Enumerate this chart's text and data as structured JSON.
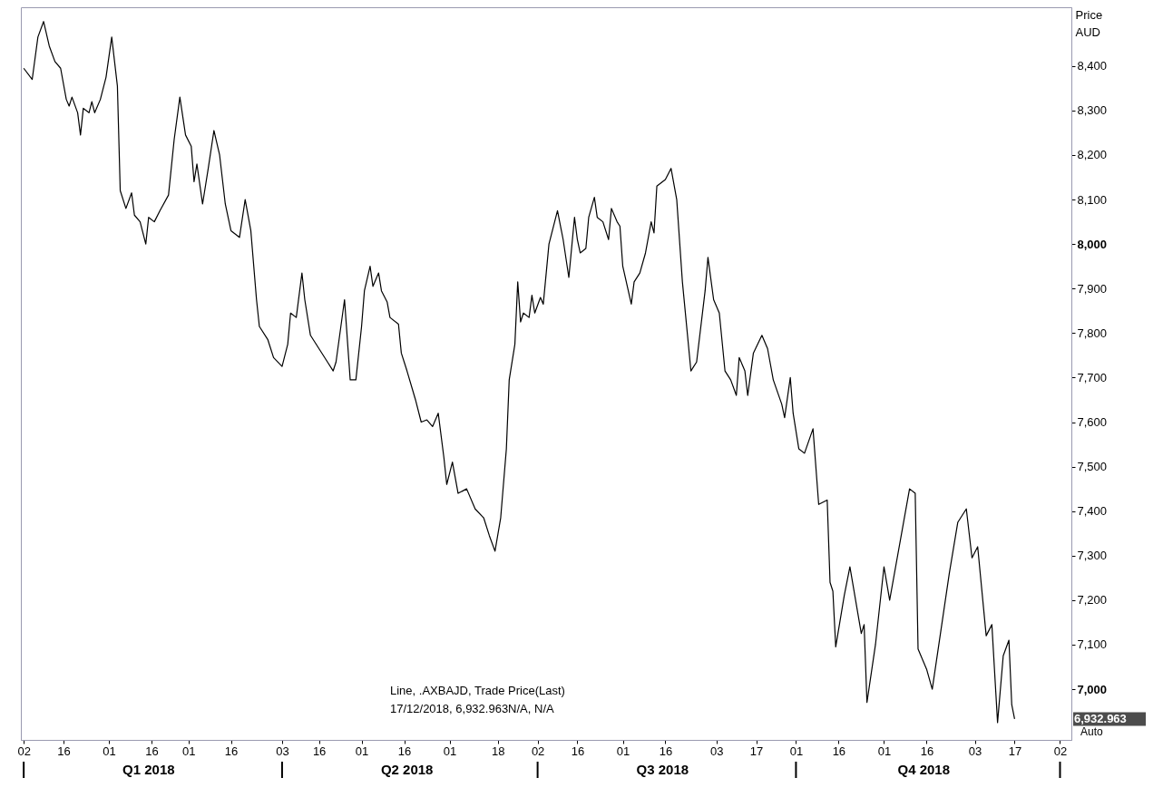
{
  "chart_data": {
    "type": "line",
    "ylabel": "Price AUD",
    "x": [
      "2018-01-02",
      "2018-01-05",
      "2018-01-07",
      "2018-01-09",
      "2018-01-11",
      "2018-01-13",
      "2018-01-15",
      "2018-01-17",
      "2018-01-18",
      "2018-01-19",
      "2018-01-21",
      "2018-01-22",
      "2018-01-23",
      "2018-01-25",
      "2018-01-26",
      "2018-01-27",
      "2018-01-29",
      "2018-01-31",
      "2018-02-02",
      "2018-02-04",
      "2018-02-05",
      "2018-02-07",
      "2018-02-09",
      "2018-02-10",
      "2018-02-12",
      "2018-02-14",
      "2018-02-15",
      "2018-02-17",
      "2018-02-19",
      "2018-02-22",
      "2018-02-24",
      "2018-02-26",
      "2018-02-28",
      "2018-03-02",
      "2018-03-03",
      "2018-03-04",
      "2018-03-06",
      "2018-03-08",
      "2018-03-10",
      "2018-03-12",
      "2018-03-14",
      "2018-03-16",
      "2018-03-19",
      "2018-03-21",
      "2018-03-23",
      "2018-03-25",
      "2018-03-26",
      "2018-03-29",
      "2018-03-31",
      "2018-04-03",
      "2018-04-05",
      "2018-04-06",
      "2018-04-08",
      "2018-04-10",
      "2018-04-11",
      "2018-04-13",
      "2018-04-16",
      "2018-04-19",
      "2018-04-21",
      "2018-04-22",
      "2018-04-25",
      "2018-04-27",
      "2018-04-29",
      "2018-05-01",
      "2018-05-02",
      "2018-05-04",
      "2018-05-05",
      "2018-05-07",
      "2018-05-08",
      "2018-05-10",
      "2018-05-11",
      "2018-05-14",
      "2018-05-15",
      "2018-05-17",
      "2018-05-20",
      "2018-05-22",
      "2018-05-24",
      "2018-05-26",
      "2018-05-28",
      "2018-05-30",
      "2018-05-31",
      "2018-06-02",
      "2018-06-04",
      "2018-06-07",
      "2018-06-10",
      "2018-06-13",
      "2018-06-15",
      "2018-06-17",
      "2018-06-19",
      "2018-06-21",
      "2018-06-22",
      "2018-06-24",
      "2018-06-25",
      "2018-06-26",
      "2018-06-27",
      "2018-06-29",
      "2018-06-30",
      "2018-07-01",
      "2018-07-03",
      "2018-07-04",
      "2018-07-06",
      "2018-07-09",
      "2018-07-11",
      "2018-07-13",
      "2018-07-15",
      "2018-07-16",
      "2018-07-17",
      "2018-07-19",
      "2018-07-20",
      "2018-07-22",
      "2018-07-23",
      "2018-07-25",
      "2018-07-27",
      "2018-07-28",
      "2018-07-30",
      "2018-07-31",
      "2018-08-01",
      "2018-08-04",
      "2018-08-05",
      "2018-08-07",
      "2018-08-09",
      "2018-08-11",
      "2018-08-12",
      "2018-08-13",
      "2018-08-16",
      "2018-08-18",
      "2018-08-20",
      "2018-08-22",
      "2018-08-25",
      "2018-08-27",
      "2018-08-30",
      "2018-08-31",
      "2018-09-02",
      "2018-09-04",
      "2018-09-06",
      "2018-09-08",
      "2018-09-10",
      "2018-09-11",
      "2018-09-13",
      "2018-09-14",
      "2018-09-16",
      "2018-09-19",
      "2018-09-21",
      "2018-09-23",
      "2018-09-26",
      "2018-09-27",
      "2018-09-29",
      "2018-09-30",
      "2018-10-02",
      "2018-10-04",
      "2018-10-07",
      "2018-10-09",
      "2018-10-12",
      "2018-10-13",
      "2018-10-14",
      "2018-10-15",
      "2018-10-18",
      "2018-10-20",
      "2018-10-24",
      "2018-10-25",
      "2018-10-26",
      "2018-10-29",
      "2018-11-01",
      "2018-11-03",
      "2018-11-10",
      "2018-11-12",
      "2018-11-13",
      "2018-11-16",
      "2018-11-18",
      "2018-11-24",
      "2018-11-27",
      "2018-11-30",
      "2018-12-02",
      "2018-12-04",
      "2018-12-07",
      "2018-12-09",
      "2018-12-11",
      "2018-12-13",
      "2018-12-15",
      "2018-12-16",
      "2018-12-17"
    ],
    "series": [
      {
        "color": "#000000",
        "values": [
          8395,
          8370,
          8465,
          8500,
          8445,
          8410,
          8395,
          8325,
          8310,
          8330,
          8295,
          8245,
          8305,
          8295,
          8320,
          8295,
          8325,
          8375,
          8465,
          8355,
          8120,
          8080,
          8115,
          8065,
          8050,
          8000,
          8060,
          8050,
          8075,
          8110,
          8235,
          8330,
          8245,
          8220,
          8140,
          8180,
          8090,
          8170,
          8255,
          8200,
          8090,
          8030,
          8015,
          8100,
          8030,
          7875,
          7815,
          7785,
          7745,
          7725,
          7775,
          7845,
          7835,
          7935,
          7875,
          7795,
          7765,
          7735,
          7715,
          7735,
          7875,
          7695,
          7695,
          7815,
          7895,
          7950,
          7905,
          7935,
          7895,
          7870,
          7835,
          7820,
          7755,
          7715,
          7650,
          7600,
          7605,
          7590,
          7620,
          7520,
          7460,
          7510,
          7440,
          7450,
          7405,
          7385,
          7345,
          7310,
          7385,
          7540,
          7695,
          7775,
          7915,
          7825,
          7845,
          7835,
          7885,
          7845,
          7880,
          7865,
          8000,
          8075,
          8010,
          7925,
          8060,
          8010,
          7980,
          7990,
          8060,
          8105,
          8060,
          8050,
          8010,
          8080,
          8050,
          8040,
          7950,
          7865,
          7915,
          7935,
          7980,
          8050,
          8025,
          8130,
          8145,
          8170,
          8100,
          7915,
          7715,
          7735,
          7895,
          7970,
          7875,
          7845,
          7715,
          7695,
          7660,
          7745,
          7715,
          7660,
          7755,
          7795,
          7765,
          7695,
          7640,
          7610,
          7700,
          7620,
          7540,
          7530,
          7585,
          7415,
          7425,
          7240,
          7220,
          7095,
          7210,
          7275,
          7125,
          7145,
          6970,
          7100,
          7275,
          7200,
          7450,
          7440,
          7090,
          7045,
          7000,
          7260,
          7375,
          7405,
          7295,
          7320,
          7120,
          7145,
          6925,
          7075,
          7110,
          6965,
          6932.963
        ]
      }
    ],
    "xlim": [
      "2018-01-01",
      "2019-01-06"
    ],
    "xticks": [
      {
        "value": "2018-01-02",
        "label": "02"
      },
      {
        "value": "2018-01-16",
        "label": "16"
      },
      {
        "value": "2018-02-01",
        "label": "01"
      },
      {
        "value": "2018-02-16",
        "label": "16"
      },
      {
        "value": "2018-03-01",
        "label": "01"
      },
      {
        "value": "2018-03-16",
        "label": "16"
      },
      {
        "value": "2018-04-03",
        "label": "03"
      },
      {
        "value": "2018-04-16",
        "label": "16"
      },
      {
        "value": "2018-05-01",
        "label": "01"
      },
      {
        "value": "2018-05-16",
        "label": "16"
      },
      {
        "value": "2018-06-01",
        "label": "01"
      },
      {
        "value": "2018-06-18",
        "label": "18"
      },
      {
        "value": "2018-07-02",
        "label": "02"
      },
      {
        "value": "2018-07-16",
        "label": "16"
      },
      {
        "value": "2018-08-01",
        "label": "01"
      },
      {
        "value": "2018-08-16",
        "label": "16"
      },
      {
        "value": "2018-09-03",
        "label": "03"
      },
      {
        "value": "2018-09-17",
        "label": "17"
      },
      {
        "value": "2018-10-01",
        "label": "01"
      },
      {
        "value": "2018-10-16",
        "label": "16"
      },
      {
        "value": "2018-11-01",
        "label": "01"
      },
      {
        "value": "2018-11-16",
        "label": "16"
      },
      {
        "value": "2018-12-03",
        "label": "03"
      },
      {
        "value": "2018-12-17",
        "label": "17"
      },
      {
        "value": "2019-01-02",
        "label": "02"
      }
    ],
    "x2ticks": [
      {
        "value": "2018-01-02",
        "label": null
      },
      {
        "value": "2018-02-15",
        "label": "Q1 2018"
      },
      {
        "value": "2018-04-03",
        "label": null
      },
      {
        "value": "2018-05-17",
        "label": "Q2 2018"
      },
      {
        "value": "2018-07-02",
        "label": null
      },
      {
        "value": "2018-08-15",
        "label": "Q3 2018"
      },
      {
        "value": "2018-10-01",
        "label": null
      },
      {
        "value": "2018-11-15",
        "label": "Q4 2018"
      },
      {
        "value": "2019-01-02",
        "label": null
      }
    ],
    "ylim": [
      6886,
      8532
    ],
    "x2lim": [
      "2018-01-01",
      "2019-01-06"
    ],
    "yticks": [
      {
        "value": 7000,
        "label": "7,000"
      },
      {
        "value": 7100,
        "label": "7,100"
      },
      {
        "value": 7200,
        "label": "7,200"
      },
      {
        "value": 7300,
        "label": "7,300"
      },
      {
        "value": 7400,
        "label": "7,400"
      },
      {
        "value": 7500,
        "label": "7,500"
      },
      {
        "value": 7600,
        "label": "7,600"
      },
      {
        "value": 7700,
        "label": "7,700"
      },
      {
        "value": 7800,
        "label": "7,800"
      },
      {
        "value": 7900,
        "label": "7,900"
      },
      {
        "value": 8000,
        "label": "8,000"
      },
      {
        "value": 8100,
        "label": "8,100"
      },
      {
        "value": 8200,
        "label": "8,200"
      },
      {
        "value": 8300,
        "label": "8,300"
      },
      {
        "value": 8400,
        "label": "8,400"
      }
    ],
    "annotations": [
      "Line, .AXBAJD, Trade Price(Last)",
      "17/12/2018, 6,932.963N/A, N/A",
      "6,932.963",
      "Auto"
    ]
  }
}
